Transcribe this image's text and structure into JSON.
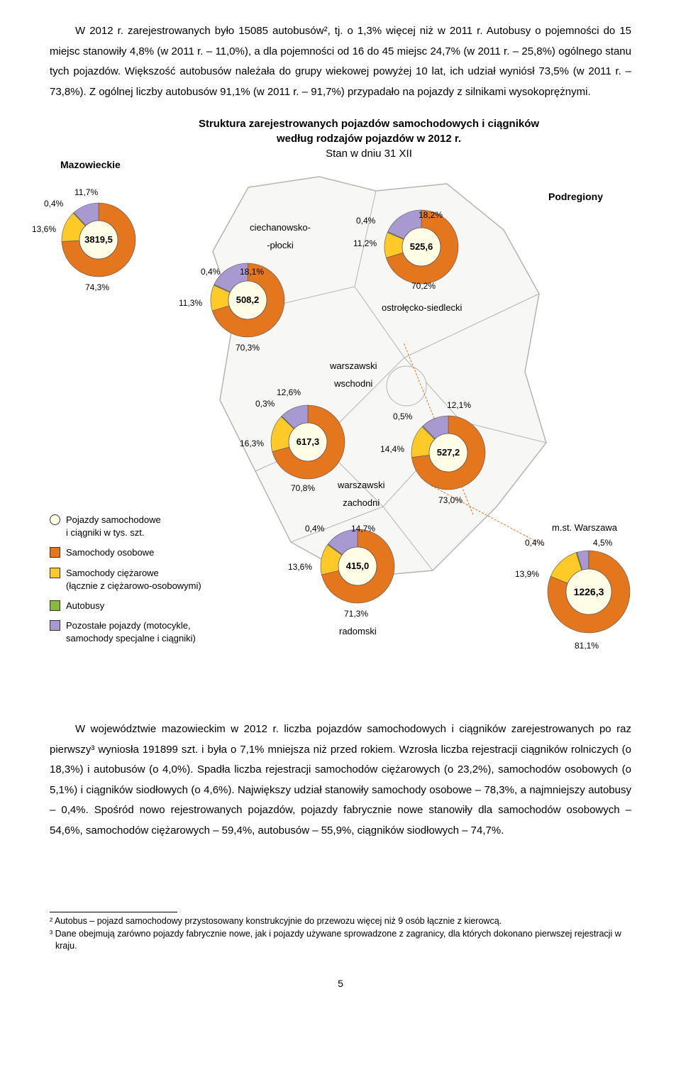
{
  "text": {
    "para1": "W 2012 r. zarejestrowanych było 15085 autobusów², tj. o 1,3% więcej niż w 2011 r. Autobusy o pojemności do 15 miejsc stanowiły 4,8% (w 2011 r. – 11,0%), a dla pojemności od 16 do 45 miejsc 24,7% (w 2011 r. – 25,8%) ogólnego stanu tych pojazdów. Większość autobusów należała do grupy wiekowej powyżej 10 lat, ich udział wyniósł 73,5% (w 2011 r. – 73,8%). Z ogólnej liczby autobusów 91,1% (w 2011 r. – 91,7%) przypadało na pojazdy z silnikami wysokoprężnymi.",
    "para2": "W województwie mazowieckim w 2012 r. liczba pojazdów samochodowych i ciągników zarejestrowanych po raz pierwszy³ wyniosła 191899 szt. i była o 7,1% mniejsza niż przed rokiem. Wzrosła liczba rejestracji ciągników rolniczych (o 18,3%) i autobusów (o 4,0%). Spadła liczba rejestracji samochodów ciężarowych (o 23,2%), samochodów osobowych (o 5,1%) i ciągników siodłowych (o 4,6%). Największy udział stanowiły samochody osobowe – 78,3%, a najmniejszy autobusy – 0,4%. Spośród nowo rejestrowanych pojazdów, pojazdy fabrycznie nowe stanowiły dla samochodów osobowych – 54,6%, samochodów ciężarowych – 59,4%, autobusów – 55,9%, ciągników siodłowych – 74,7%.",
    "footnote2": "² Autobus – pojazd samochodowy przystosowany konstrukcyjnie do przewozu więcej niż 9 osób łącznie z kierowcą.",
    "footnote3": "³ Dane obejmują zarówno pojazdy fabrycznie nowe, jak i pojazdy używane sprowadzone z zagranicy, dla których dokonano pierwszej rejestracji w kraju.",
    "page_num": "5"
  },
  "chart": {
    "title_l1": "Struktura zarejestrowanych pojazdów samochodowych i ciągników",
    "title_l2": "według rodzajów pojazdów w 2012 r.",
    "title_l3": "Stan w dniu 31 XII",
    "region_label": "Mazowieckie",
    "podregiony_label": "Podregiony",
    "mst_label": "m.st. Warszawa",
    "colors": {
      "osobowe": "#e4761d",
      "ciezarowe": "#ffc928",
      "autobusy": "#8ab93f",
      "pozostale": "#a899d1",
      "center_fill": "#fffde5",
      "map_fill": "#f7f7f5",
      "map_stroke": "#b5b5af"
    },
    "legend": {
      "circle": "Pojazdy samochodowe\ni ciągniki w tys. szt.",
      "osobowe": "Samochody osobowe",
      "ciezarowe": "Samochody ciężarowe\n(łącznie z ciężarowo-osobowymi)",
      "autobusy": "Autobusy",
      "pozostale": "Pozostałe pojazdy (motocykle,\nsamochody specjalne i ciągniki)"
    },
    "donuts": {
      "mazowieckie": {
        "center": "3819,5",
        "segments": [
          {
            "label": "74,3%",
            "color": "osobowe",
            "value": 74.3
          },
          {
            "label": "13,6%",
            "color": "ciezarowe",
            "value": 13.6
          },
          {
            "label": "0,4%",
            "color": "autobusy",
            "value": 0.4
          },
          {
            "label": "11,7%",
            "color": "pozostale",
            "value": 11.7
          }
        ]
      },
      "ciech": {
        "name": "ciechanowsko-\n-płocki",
        "center": "508,2",
        "segments": [
          {
            "label": "70,3%",
            "color": "osobowe",
            "value": 70.3
          },
          {
            "label": "11,3%",
            "color": "ciezarowe",
            "value": 11.3
          },
          {
            "label": "0,4%",
            "color": "autobusy",
            "value": 0.4
          },
          {
            "label": "18,1%",
            "color": "pozostale",
            "value": 18.1
          }
        ]
      },
      "ostro": {
        "name": "ostrołęcko-siedlecki",
        "center": "525,6",
        "segments": [
          {
            "label": "70,2%",
            "color": "osobowe",
            "value": 70.2
          },
          {
            "label": "11,2%",
            "color": "ciezarowe",
            "value": 11.2
          },
          {
            "label": "0,4%",
            "color": "autobusy",
            "value": 0.4
          },
          {
            "label": "18,2%",
            "color": "pozostale",
            "value": 18.2
          }
        ]
      },
      "w_wsch": {
        "name": "warszawski\nwschodni",
        "center": "617,3",
        "segments": [
          {
            "label": "70,8%",
            "color": "osobowe",
            "value": 70.8
          },
          {
            "label": "16,3%",
            "color": "ciezarowe",
            "value": 16.3
          },
          {
            "label": "0,3%",
            "color": "autobusy",
            "value": 0.3
          },
          {
            "label": "12,6%",
            "color": "pozostale",
            "value": 12.6
          }
        ]
      },
      "w_zach": {
        "name": "warszawski\nzachodni",
        "center": "527,2",
        "segments": [
          {
            "label": "73,0%",
            "color": "osobowe",
            "value": 73.0
          },
          {
            "label": "14,4%",
            "color": "ciezarowe",
            "value": 14.4
          },
          {
            "label": "0,5%",
            "color": "autobusy",
            "value": 0.5
          },
          {
            "label": "12,1%",
            "color": "pozostale",
            "value": 12.1
          }
        ]
      },
      "radomski": {
        "name": "radomski",
        "center": "415,0",
        "segments": [
          {
            "label": "71,3%",
            "color": "osobowe",
            "value": 71.3
          },
          {
            "label": "13,6%",
            "color": "ciezarowe",
            "value": 13.6
          },
          {
            "label": "0,4%",
            "color": "autobusy",
            "value": 0.4
          },
          {
            "label": "14,7%",
            "color": "pozostale",
            "value": 14.7
          }
        ]
      },
      "warszawa": {
        "center": "1226,3",
        "segments": [
          {
            "label": "81,1%",
            "color": "osobowe",
            "value": 81.1
          },
          {
            "label": "13,9%",
            "color": "ciezarowe",
            "value": 13.9
          },
          {
            "label": "0,4%",
            "color": "autobusy",
            "value": 0.4
          },
          {
            "label": "4,5%",
            "color": "pozostale",
            "value": 4.5
          }
        ]
      }
    }
  }
}
